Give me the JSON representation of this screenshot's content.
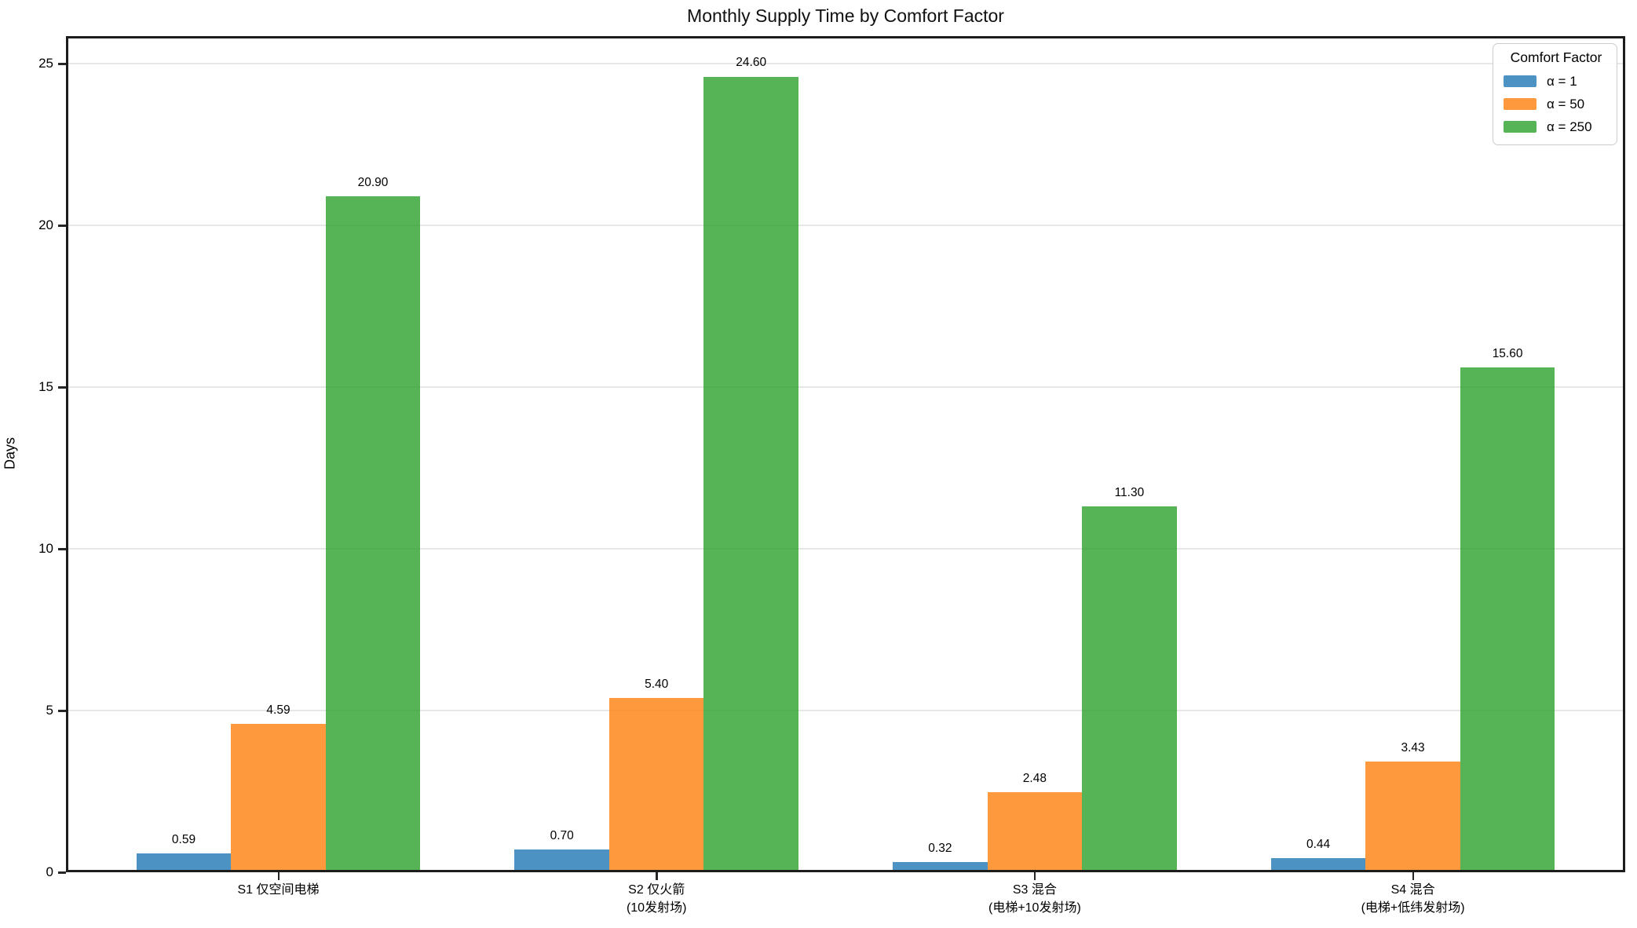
{
  "figure": {
    "title": "Monthly Supply Time by Comfort Factor",
    "ylabel": "Days"
  },
  "legend": {
    "title": "Comfort Factor",
    "entries": [
      "α = 1",
      "α = 50",
      "α = 250"
    ]
  },
  "colors": {
    "background": "#ffffff",
    "grid": "#e7e7e7",
    "spine": "#1c1c1c",
    "tick": "#262626",
    "series_blue": "#4c92c3",
    "series_orange": "#ff993e",
    "series_green": "#56b356"
  },
  "chart_data": {
    "type": "bar",
    "title": "Monthly Supply Time by Comfort Factor",
    "xlabel": "",
    "ylabel": "Days",
    "ylim": [
      0,
      25.85
    ],
    "yticks": [
      0,
      5,
      10,
      15,
      20,
      25
    ],
    "grid": "horizontal",
    "legend_title": "Comfort Factor",
    "legend_position": "upper right",
    "bar_label_decimals": 2,
    "categories": [
      "S1 仅空间电梯",
      "S2 仅火箭\n(10发射场)",
      "S3 混合\n(电梯+10发射场)",
      "S4 混合\n(电梯+低纬发射场)"
    ],
    "series": [
      {
        "name": "α = 1",
        "base_color": "#1f77b4",
        "alpha": 0.8,
        "rendered_color": "#4c92c3",
        "values": [
          0.59,
          0.7,
          0.32,
          0.44
        ]
      },
      {
        "name": "α = 50",
        "base_color": "#ff7f0e",
        "alpha": 0.8,
        "rendered_color": "#ff993e",
        "values": [
          4.59,
          5.4,
          2.48,
          3.43
        ]
      },
      {
        "name": "α = 250",
        "base_color": "#2ca02c",
        "alpha": 0.8,
        "rendered_color": "#56b356",
        "values": [
          20.9,
          24.6,
          11.3,
          15.6
        ]
      }
    ]
  }
}
